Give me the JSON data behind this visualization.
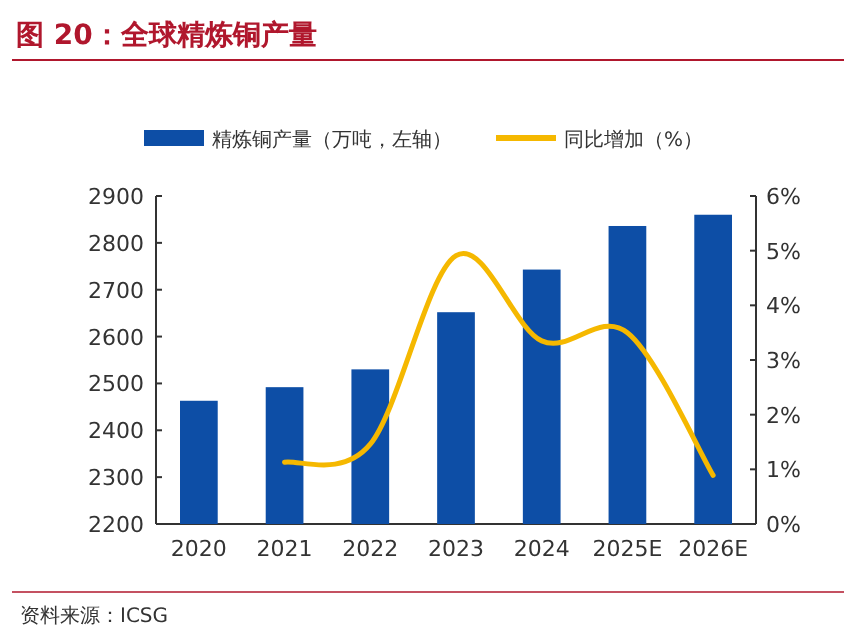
{
  "chart_data": {
    "type": "bar",
    "title": "图 20：全球精炼铜产量",
    "categories": [
      "2020",
      "2021",
      "2022",
      "2023",
      "2024",
      "2025E",
      "2026E"
    ],
    "series": [
      {
        "name": "精炼铜产量（万吨，左轴）",
        "color": "#0d4ea6",
        "values": [
          2463,
          2492,
          2530,
          2652,
          2743,
          2836,
          2860
        ]
      },
      {
        "name": "同比增加（%）",
        "type": "line",
        "axis": "y2",
        "color": "#f5b800",
        "values": [
          null,
          1.13,
          1.46,
          4.91,
          3.35,
          3.5,
          0.89
        ]
      }
    ],
    "ylim": [
      2200,
      2900
    ],
    "yticks": [
      2200,
      2300,
      2400,
      2500,
      2600,
      2700,
      2800,
      2900
    ],
    "y2lim": [
      0,
      6
    ],
    "y2ticks": [
      {
        "value": 0,
        "label": "0%"
      },
      {
        "value": 1,
        "label": "1%"
      },
      {
        "value": 2,
        "label": "2%"
      },
      {
        "value": 3,
        "label": "3%"
      },
      {
        "value": 4,
        "label": "4%"
      },
      {
        "value": 5,
        "label": "5%"
      },
      {
        "value": 6,
        "label": "6%"
      }
    ],
    "legend": "top",
    "grid": false,
    "annotations": [
      "资料来源：ICSG"
    ]
  }
}
